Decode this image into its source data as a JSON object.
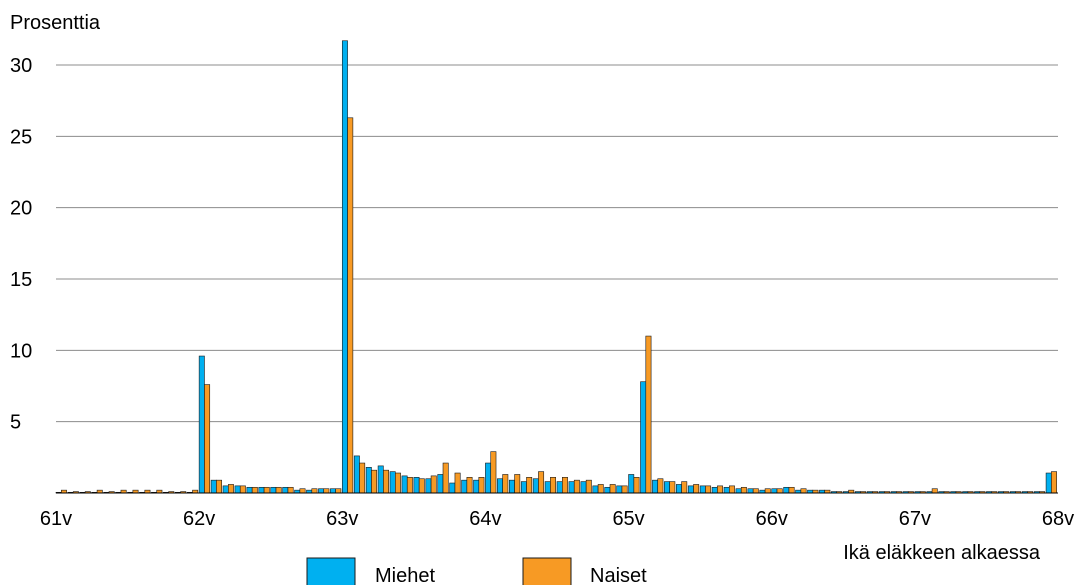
{
  "chart_data": {
    "type": "bar",
    "title": "",
    "ylabel": "Prosenttia",
    "xlabel": "Ikä eläkkeen alkaessa",
    "ylim": [
      0,
      30
    ],
    "yticks": [
      5,
      10,
      15,
      20,
      25,
      30
    ],
    "xlim": [
      61,
      68
    ],
    "xticks": [
      {
        "value": 61,
        "label": "61v"
      },
      {
        "value": 62,
        "label": "62v"
      },
      {
        "value": 63,
        "label": "63v"
      },
      {
        "value": 64,
        "label": "64v"
      },
      {
        "value": 65,
        "label": "65v"
      },
      {
        "value": 66,
        "label": "66v"
      },
      {
        "value": 67,
        "label": "67v"
      },
      {
        "value": 68,
        "label": "68v"
      }
    ],
    "grid": true,
    "legend_position": "bottom",
    "colors": {
      "Miehet": "#00b0f0",
      "Naiset": "#f79a24"
    },
    "series": [
      {
        "name": "Miehet",
        "values": [
          0.05,
          0.05,
          0.05,
          0.05,
          0.05,
          0.05,
          0.05,
          0.05,
          0.05,
          0.05,
          0.05,
          0.05,
          9.6,
          0.9,
          0.5,
          0.5,
          0.4,
          0.4,
          0.4,
          0.4,
          0.2,
          0.2,
          0.3,
          0.3,
          31.7,
          2.6,
          1.8,
          1.9,
          1.5,
          1.2,
          1.1,
          1.0,
          1.3,
          0.7,
          0.9,
          0.9,
          2.1,
          1.0,
          0.9,
          0.8,
          1.0,
          0.8,
          0.8,
          0.8,
          0.8,
          0.5,
          0.4,
          0.5,
          1.3,
          7.8,
          0.9,
          0.8,
          0.6,
          0.5,
          0.5,
          0.4,
          0.4,
          0.3,
          0.3,
          0.2,
          0.3,
          0.4,
          0.2,
          0.2,
          0.2,
          0.1,
          0.1,
          0.1,
          0.1,
          0.1,
          0.1,
          0.1,
          0.1,
          0.1,
          0.1,
          0.1,
          0.1,
          0.1,
          0.1,
          0.1,
          0.1,
          0.1,
          0.1,
          1.4
        ]
      },
      {
        "name": "Naiset",
        "values": [
          0.2,
          0.1,
          0.1,
          0.2,
          0.1,
          0.2,
          0.2,
          0.2,
          0.2,
          0.1,
          0.1,
          0.2,
          7.6,
          0.9,
          0.6,
          0.5,
          0.4,
          0.4,
          0.4,
          0.4,
          0.3,
          0.3,
          0.3,
          0.3,
          26.3,
          2.1,
          1.6,
          1.6,
          1.4,
          1.1,
          1.0,
          1.2,
          2.1,
          1.4,
          1.1,
          1.1,
          2.9,
          1.3,
          1.3,
          1.1,
          1.5,
          1.1,
          1.1,
          0.9,
          0.9,
          0.6,
          0.6,
          0.5,
          1.1,
          11.0,
          1.0,
          0.8,
          0.8,
          0.6,
          0.5,
          0.5,
          0.5,
          0.4,
          0.3,
          0.3,
          0.3,
          0.4,
          0.3,
          0.2,
          0.2,
          0.1,
          0.2,
          0.1,
          0.1,
          0.1,
          0.1,
          0.1,
          0.1,
          0.3,
          0.1,
          0.1,
          0.1,
          0.1,
          0.1,
          0.1,
          0.1,
          0.1,
          0.1,
          1.5
        ]
      }
    ]
  }
}
